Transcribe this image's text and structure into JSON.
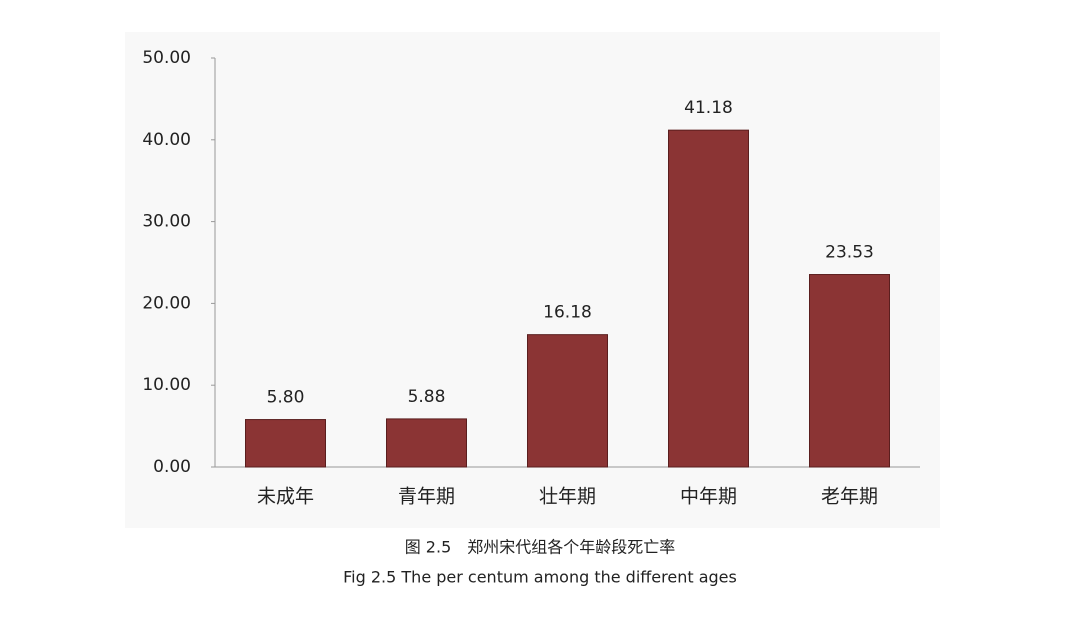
{
  "chart_data": {
    "type": "bar",
    "title": "图 2.5　郑州宋代组各个年龄段死亡率",
    "subtitle": "Fig 2.5 The per centum among the different ages",
    "categories": [
      "未成年",
      "青年期",
      "壮年期",
      "中年期",
      "老年期"
    ],
    "values": [
      5.8,
      5.88,
      16.18,
      41.18,
      23.53
    ],
    "value_labels": [
      "5.80",
      "5.88",
      "16.18",
      "41.18",
      "23.53"
    ],
    "color": "#8b3434",
    "ylim": [
      0,
      50
    ],
    "yticks": [
      {
        "value": 0,
        "label": "0.00"
      },
      {
        "value": 10,
        "label": "10.00"
      },
      {
        "value": 20,
        "label": "20.00"
      },
      {
        "value": 30,
        "label": "30.00"
      },
      {
        "value": 40,
        "label": "40.00"
      },
      {
        "value": 50,
        "label": "50.00"
      }
    ],
    "grid": false
  }
}
